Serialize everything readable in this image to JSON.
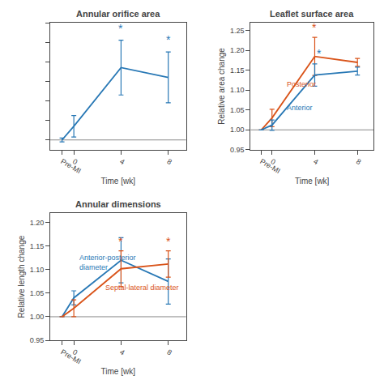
{
  "chart_data": [
    {
      "type": "line",
      "title": "Annular orifice area",
      "x_label": "Time [wk]",
      "x": [
        -1,
        0,
        4,
        8
      ],
      "xlim": [
        -2,
        9.5
      ],
      "xticks": [
        {
          "value": -1,
          "label": "Pre-MI"
        },
        0,
        4,
        8
      ],
      "ylim": [
        -0.05,
        0.6
      ],
      "yticks": [
        0,
        0.1,
        0.2,
        0.3,
        0.4,
        0.5,
        0.6
      ],
      "tick_labels": "x",
      "grid": false,
      "reference_line": {
        "y": 0.0,
        "color": "#888888"
      },
      "series": [
        {
          "color": "#2878b5",
          "values": [
            0.0,
            0.07,
            0.37,
            0.32
          ],
          "errors": [
            0.01,
            0.055,
            0.14,
            0.13
          ]
        }
      ],
      "annotations": [
        {
          "text": "*",
          "x": 4,
          "y": 0.53,
          "color": "#2878b5"
        },
        {
          "text": "*",
          "x": 8,
          "y": 0.47,
          "color": "#2878b5"
        }
      ]
    },
    {
      "type": "line",
      "title": "Leaflet surface area",
      "x_label": "Time [wk]",
      "y_label": "Relative area change",
      "x": [
        -1,
        0,
        4,
        8
      ],
      "xlim": [
        -2,
        9.5
      ],
      "xticks": [
        {
          "value": -1,
          "label": "Pre-MI"
        },
        0,
        4,
        8
      ],
      "ylim": [
        0.95,
        1.27
      ],
      "yticks": [
        0.95,
        {
          "value": 1.0,
          "label": "1.00"
        },
        1.05,
        {
          "value": 1.1,
          "label": "1.10"
        },
        1.15,
        {
          "value": 1.2,
          "label": "1.20"
        },
        1.25
      ],
      "grid": false,
      "reference_line": {
        "y": 1.0,
        "color": "#888888"
      },
      "series": [
        {
          "name": "Posterior",
          "color": "#d95319",
          "values": [
            1.0,
            1.03,
            1.185,
            1.17
          ],
          "errors": [
            0.0,
            0.022,
            0.048,
            0.01
          ],
          "label_x": 1.2,
          "label_y": 1.115
        },
        {
          "name": "Anterior",
          "color": "#2878b5",
          "values": [
            1.0,
            1.012,
            1.138,
            1.148
          ],
          "errors": [
            0.0,
            0.013,
            0.028,
            0.01
          ],
          "label_x": 1.2,
          "label_y": 1.055
        }
      ],
      "annotations": [
        {
          "text": "*",
          "x": 4,
          "y": 1.238,
          "color": "#d95319"
        },
        {
          "text": "*",
          "x": 4.4,
          "y": 1.172,
          "color": "#2878b5"
        }
      ]
    },
    {
      "type": "line",
      "title": "Annular dimensions",
      "x_label": "Time [wk]",
      "y_label": "Relative length change",
      "x": [
        -1,
        0,
        4,
        8
      ],
      "xlim": [
        -2,
        9.5
      ],
      "xticks": [
        {
          "value": -1,
          "label": "Pre-MI"
        },
        0,
        4,
        8
      ],
      "ylim": [
        0.95,
        1.22
      ],
      "yticks": [
        0.95,
        {
          "value": 1.0,
          "label": "1.00"
        },
        1.05,
        {
          "value": 1.1,
          "label": "1.10"
        },
        1.15,
        {
          "value": 1.2,
          "label": "1.20"
        }
      ],
      "grid": false,
      "reference_line": {
        "y": 1.0,
        "color": "#888888"
      },
      "series": [
        {
          "name": "Anterior-posterior\ndiameter",
          "color": "#2878b5",
          "values": [
            1.0,
            1.04,
            1.12,
            1.075
          ],
          "errors": [
            0.0,
            0.015,
            0.048,
            0.048
          ],
          "label_x": 0.3,
          "label_y": 1.115
        },
        {
          "name": "Septal-lateral diameter",
          "color": "#d95319",
          "values": [
            1.0,
            1.018,
            1.102,
            1.112
          ],
          "errors": [
            0.0,
            0.018,
            0.038,
            0.028
          ],
          "label_x": 2.5,
          "label_y": 1.062
        }
      ],
      "annotations": [
        {
          "text": "*",
          "x": 4,
          "y": 1.143,
          "color": "#d95319"
        },
        {
          "text": "*",
          "x": 8,
          "y": 1.143,
          "color": "#d95319"
        }
      ]
    }
  ]
}
